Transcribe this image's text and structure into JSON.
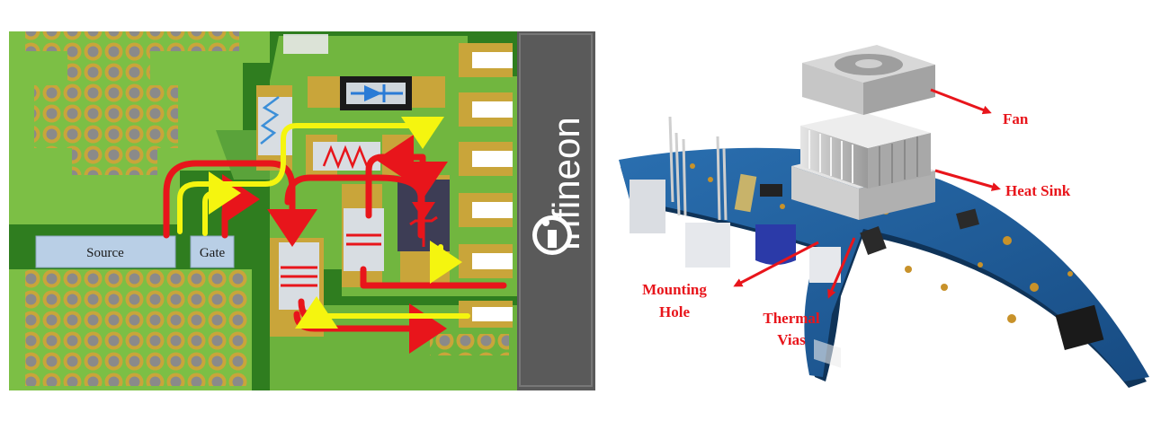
{
  "left_panel": {
    "source_label": "Source",
    "gate_label": "Gate",
    "brand_text": "Infineon"
  },
  "right_panel": {
    "callouts": {
      "fan": "Fan",
      "heat_sink": "Heat Sink",
      "mounting_hole_line1": "Mounting",
      "mounting_hole_line2": "Hole",
      "thermal_vias_line1": "Thermal",
      "thermal_vias_line2": "Vias"
    }
  },
  "colors": {
    "pcb_dark_green": "#2f7d1f",
    "pcb_light_green": "#7cbf45",
    "pad_gold": "#c9a53a",
    "current_red": "#e8151b",
    "gate_yellow": "#f5f50f",
    "board_blue": "#1f5d99",
    "label_red": "#e8151b"
  }
}
